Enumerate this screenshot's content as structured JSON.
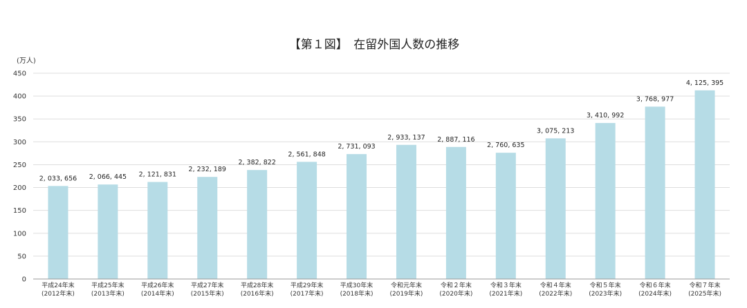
{
  "chart_data": {
    "type": "bar",
    "title": "【第１図】　在留外国人数の推移",
    "unit_label": "(万人)",
    "ylim": [
      0,
      450
    ],
    "yticks": [
      0,
      50,
      100,
      150,
      200,
      250,
      300,
      350,
      400,
      450
    ],
    "grid": true,
    "legend": "none",
    "bar_color": "#b6dce6",
    "grid_color": "#dddddd",
    "categories": [
      [
        "平成24年末",
        "(2012年末)"
      ],
      [
        "平成25年末",
        "(2013年末)"
      ],
      [
        "平成26年末",
        "(2014年末)"
      ],
      [
        "平成27年末",
        "(2015年末)"
      ],
      [
        "平成28年末",
        "(2016年末)"
      ],
      [
        "平成29年末",
        "(2017年末)"
      ],
      [
        "平成30年末",
        "(2018年末)"
      ],
      [
        "令和元年末",
        "(2019年末)"
      ],
      [
        "令和２年末",
        "(2020年末)"
      ],
      [
        "令和３年末",
        "(2021年末)"
      ],
      [
        "令和４年末",
        "(2022年末)"
      ],
      [
        "令和５年末",
        "(2023年末)"
      ],
      [
        "令和６年末",
        "(2024年末)"
      ],
      [
        "令和７年末",
        "(2025年末)"
      ]
    ],
    "values": [
      203.3656,
      206.6445,
      212.1831,
      223.2189,
      238.2822,
      256.1848,
      273.1093,
      293.3137,
      288.7116,
      276.0635,
      307.5213,
      341.0992,
      376.8977,
      412.5395
    ],
    "data_labels": [
      "2, 033, 656",
      "2, 066, 445",
      "2, 121, 831",
      "2, 232, 189",
      "2, 382, 822",
      "2, 561, 848",
      "2, 731, 093",
      "2, 933, 137",
      "2, 887, 116",
      "2, 760, 635",
      "3, 075, 213",
      "3, 410, 992",
      "3, 768, 977",
      "4, 125, 395"
    ]
  }
}
